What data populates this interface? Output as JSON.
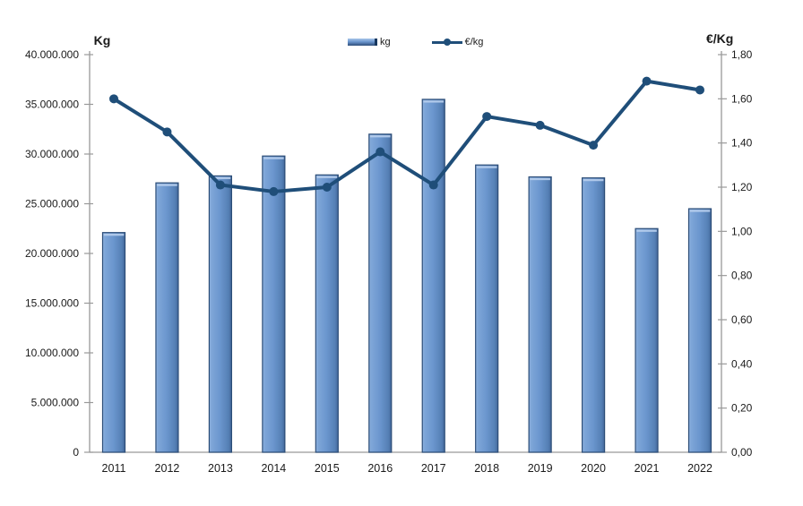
{
  "chart_data": {
    "type": "combo-bar-line",
    "title": "",
    "categories": [
      "2011",
      "2012",
      "2013",
      "2014",
      "2015",
      "2016",
      "2017",
      "2018",
      "2019",
      "2020",
      "2021",
      "2022"
    ],
    "series": [
      {
        "name": "kg",
        "type": "bar",
        "axis": "left",
        "values": [
          22100000,
          27100000,
          27800000,
          29800000,
          27900000,
          32000000,
          35500000,
          28900000,
          27700000,
          27600000,
          22500000,
          24500000
        ]
      },
      {
        "name": "€/kg",
        "type": "line",
        "axis": "right",
        "values": [
          1.6,
          1.45,
          1.21,
          1.18,
          1.2,
          1.36,
          1.21,
          1.52,
          1.48,
          1.39,
          1.68,
          1.64
        ]
      }
    ],
    "left_axis": {
      "title": "Kg",
      "min": 0,
      "max": 40000000,
      "step": 5000000,
      "tick_labels": [
        "40.000.000",
        "35.000.000",
        "30.000.000",
        "25.000.000",
        "20.000.000",
        "15.000.000",
        "10.000.000",
        "5.000.000",
        "0"
      ]
    },
    "right_axis": {
      "title": "€/Kg",
      "min": 0,
      "max": 1.8,
      "step": 0.2,
      "tick_labels": [
        "1,80",
        "1,60",
        "1,40",
        "1,20",
        "1,00",
        "0,80",
        "0,60",
        "0,40",
        "0,20",
        "0,00"
      ]
    },
    "legend": {
      "position": "top",
      "entries": [
        {
          "label": "kg",
          "type": "bar"
        },
        {
          "label": "€/kg",
          "type": "line"
        }
      ]
    },
    "grid": false
  },
  "colors": {
    "bar_fill": "#6b96ce",
    "bar_fill_light": "#92b4e0",
    "bar_fill_dark": "#436699",
    "bar_border": "#2c4d77",
    "line": "#1f4e79",
    "axis": "#999999",
    "text": "#1a1a1a"
  }
}
